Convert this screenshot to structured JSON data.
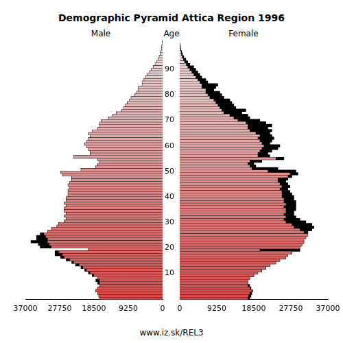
{
  "chart_data": {
    "type": "bar",
    "orientation": "horizontal",
    "title": "Demographic Pyramid Attica Region 1996",
    "y_label": "Age",
    "footer": "www.iz.sk/REL3",
    "categories": [
      null,
      null,
      null,
      null,
      null,
      null,
      null,
      null,
      null,
      null,
      10,
      null,
      null,
      null,
      null,
      null,
      null,
      null,
      null,
      null,
      20,
      null,
      null,
      null,
      null,
      null,
      null,
      null,
      null,
      null,
      30,
      null,
      null,
      null,
      null,
      null,
      null,
      null,
      null,
      null,
      40,
      null,
      null,
      null,
      null,
      null,
      null,
      null,
      null,
      null,
      50,
      null,
      null,
      null,
      null,
      null,
      null,
      null,
      null,
      null,
      60,
      null,
      null,
      null,
      null,
      null,
      null,
      null,
      null,
      null,
      70,
      null,
      null,
      null,
      null,
      null,
      null,
      null,
      null,
      null,
      80,
      null,
      null,
      null,
      null,
      null,
      null,
      null,
      null,
      null,
      90,
      null,
      null,
      null,
      null,
      null,
      null,
      null,
      null,
      null,
      null
    ],
    "xlim": [
      0,
      37000
    ],
    "xticks": [
      0,
      9250,
      18500,
      27750,
      37000
    ],
    "grid": false,
    "series": [
      {
        "name": "Male",
        "color": "#d84848",
        "values": [
          17000,
          17200,
          17500,
          18000,
          17500,
          17000,
          17500,
          18000,
          17500,
          19000,
          20000,
          21000,
          22000,
          23500,
          24500,
          26000,
          27500,
          29000,
          29000,
          20000,
          33000,
          33500,
          35500,
          34000,
          34000,
          33000,
          31000,
          30000,
          28500,
          28000,
          26500,
          26000,
          26500,
          26000,
          26500,
          26500,
          26000,
          26500,
          26000,
          26000,
          25500,
          25500,
          25500,
          25000,
          25500,
          25000,
          24500,
          24500,
          27000,
          27500,
          22000,
          18000,
          17500,
          17000,
          17500,
          24000,
          19500,
          19500,
          20000,
          20500,
          21000,
          20500,
          20000,
          19500,
          20000,
          19000,
          17500,
          17000,
          17000,
          16500,
          14500,
          13500,
          12500,
          11000,
          10500,
          10000,
          9500,
          9000,
          8500,
          7500,
          7000,
          6500,
          6500,
          5500,
          5500,
          5000,
          4500,
          4000,
          3500,
          3000,
          2500,
          2000,
          1600,
          1200,
          900,
          600,
          400,
          300,
          200,
          100,
          50
        ]
      },
      {
        "name": "Female",
        "color": "#d84848",
        "values": [
          17500,
          17800,
          18000,
          18200,
          17800,
          17500,
          17000,
          17000,
          17500,
          18500,
          19500,
          20500,
          21500,
          22500,
          24000,
          25000,
          26500,
          27000,
          28000,
          30000,
          30000,
          30500,
          31000,
          31000,
          31500,
          32000,
          32000,
          33000,
          33500,
          33000,
          31500,
          30000,
          29000,
          28500,
          28500,
          29000,
          29000,
          29000,
          29000,
          28500,
          28500,
          28000,
          27500,
          27000,
          27500,
          27000,
          26500,
          27000,
          28000,
          29500,
          29000,
          24500,
          19000,
          18500,
          20500,
          26000,
          22500,
          22000,
          23000,
          24500,
          25000,
          22500,
          23000,
          23500,
          23000,
          22500,
          23000,
          22000,
          23000,
          21500,
          20000,
          17500,
          17000,
          15500,
          16500,
          14000,
          13500,
          13000,
          12500,
          11000,
          10500,
          10000,
          8500,
          9000,
          9500,
          7000,
          6500,
          5500,
          5000,
          4500,
          4000,
          3500,
          2500,
          2000,
          1500,
          1000,
          700,
          500,
          300,
          200,
          100
        ]
      }
    ]
  }
}
